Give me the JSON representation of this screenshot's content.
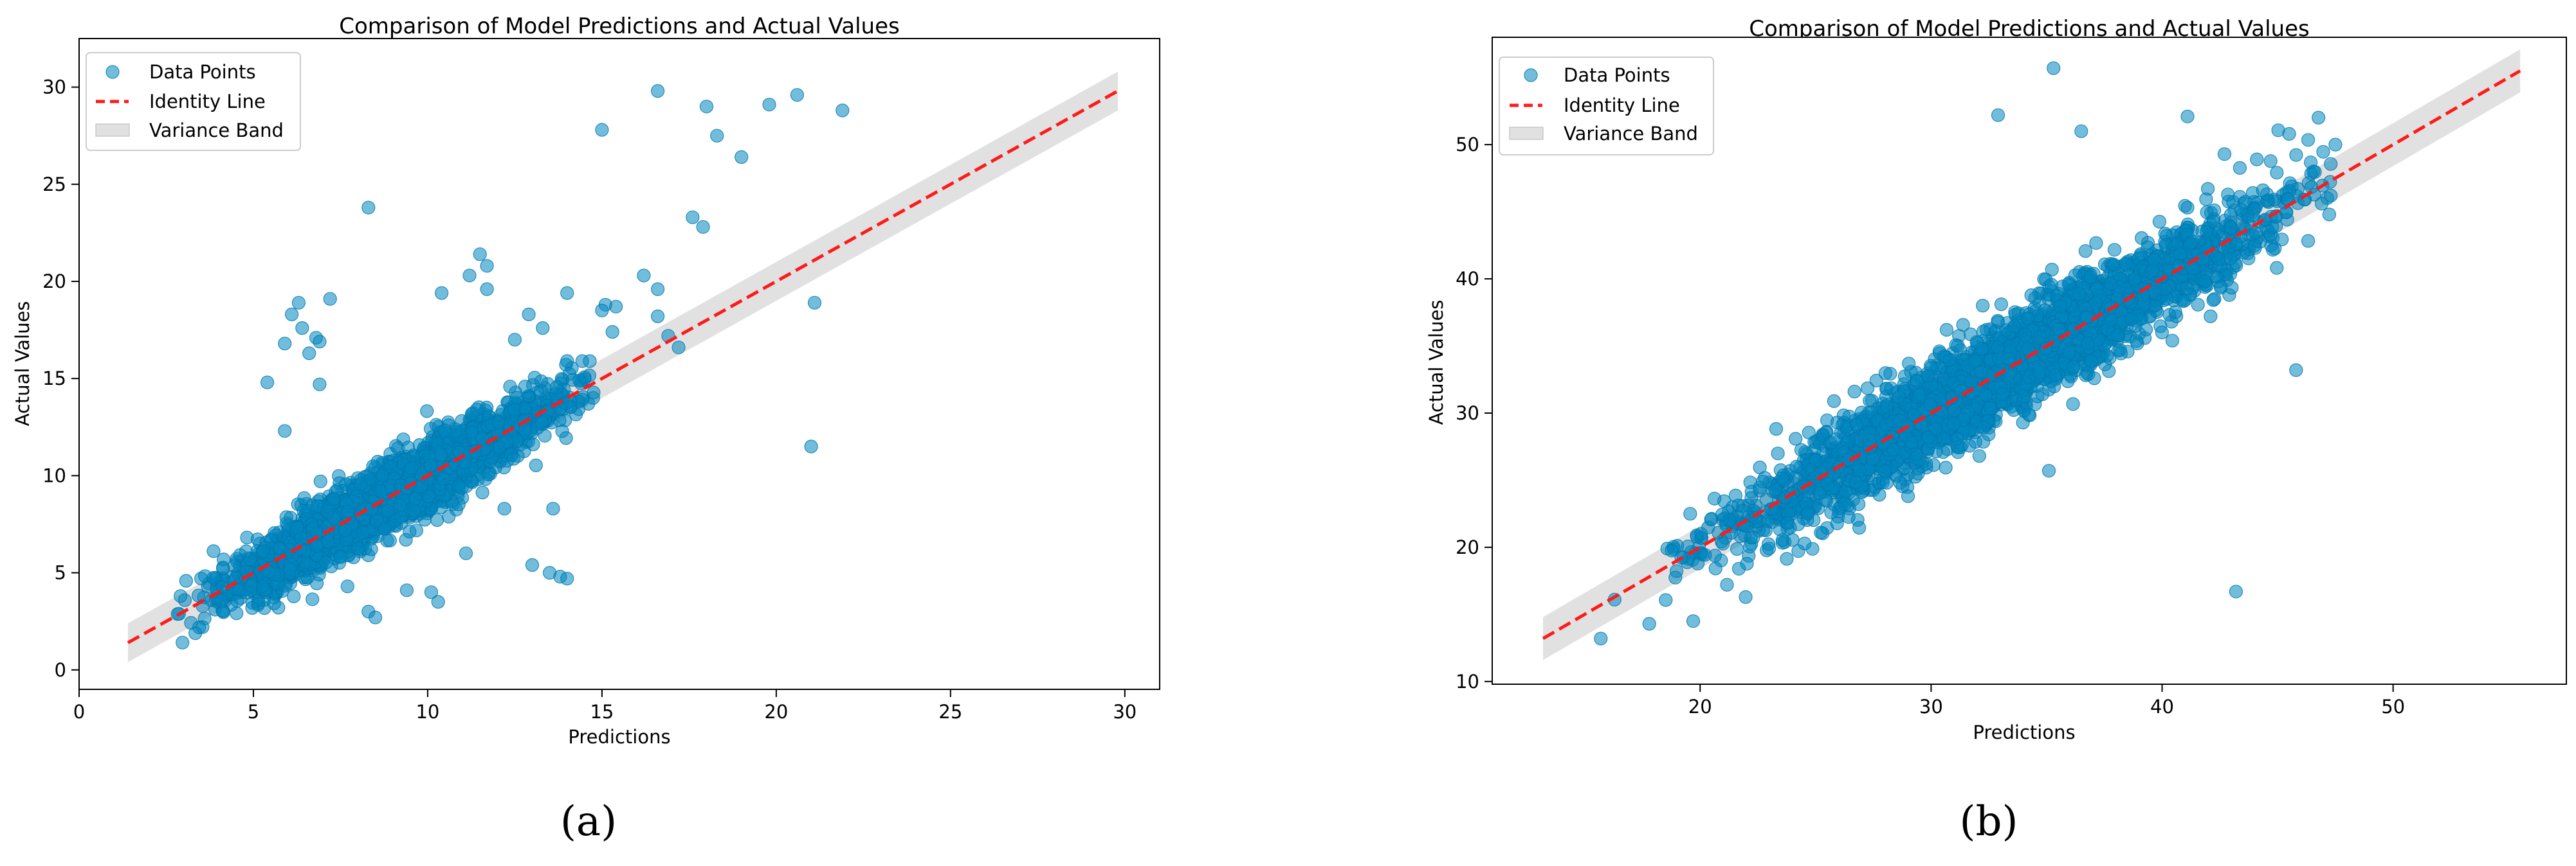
{
  "colors": {
    "points": "#0086c0",
    "identity": "#ff1a1a",
    "band": "#c9c9c9"
  },
  "chart_data": [
    {
      "type": "scatter",
      "panel_label": "(a)",
      "title": "Comparison of Model Predictions and Actual Values",
      "xlabel": "Predictions",
      "ylabel": "Actual Values",
      "xlim": [
        0,
        31
      ],
      "ylim": [
        -1,
        32.5
      ],
      "xticks": [
        0,
        5,
        10,
        15,
        20,
        25,
        30
      ],
      "yticks": [
        0,
        5,
        10,
        15,
        20,
        25,
        30
      ],
      "legend": {
        "placement": "top-left",
        "entries": [
          "Data Points",
          "Identity Line",
          "Variance Band"
        ]
      },
      "identity_line": {
        "from": 1.4,
        "to": 29.8
      },
      "variance_band_halfwidth": 1.0,
      "scatter_main": {
        "n": 2600,
        "x_center": 9.0,
        "x_spread": 2.4,
        "x_min": 2.8,
        "x_max": 14.8,
        "y_noise": 0.85,
        "seed": 7
      },
      "outliers": [
        [
          8.3,
          23.8
        ],
        [
          6.1,
          18.3
        ],
        [
          6.3,
          18.9
        ],
        [
          6.4,
          17.6
        ],
        [
          6.6,
          16.3
        ],
        [
          6.8,
          17.1
        ],
        [
          6.9,
          16.9
        ],
        [
          5.9,
          16.8
        ],
        [
          7.2,
          19.1
        ],
        [
          6.9,
          14.7
        ],
        [
          5.4,
          14.8
        ],
        [
          5.9,
          12.3
        ],
        [
          15.0,
          27.8
        ],
        [
          16.6,
          29.8
        ],
        [
          18.0,
          29.0
        ],
        [
          18.3,
          27.5
        ],
        [
          19.0,
          26.4
        ],
        [
          19.8,
          29.1
        ],
        [
          20.6,
          29.6
        ],
        [
          21.9,
          28.8
        ],
        [
          17.6,
          23.3
        ],
        [
          17.9,
          22.8
        ],
        [
          21.1,
          18.9
        ],
        [
          21.0,
          11.5
        ],
        [
          16.2,
          20.3
        ],
        [
          16.6,
          19.6
        ],
        [
          15.1,
          18.8
        ],
        [
          15.0,
          18.5
        ],
        [
          15.3,
          17.4
        ],
        [
          16.9,
          17.2
        ],
        [
          15.4,
          18.7
        ],
        [
          11.5,
          21.4
        ],
        [
          11.7,
          20.8
        ],
        [
          11.2,
          20.3
        ],
        [
          11.7,
          19.6
        ],
        [
          10.4,
          19.4
        ],
        [
          12.9,
          18.3
        ],
        [
          13.3,
          17.6
        ],
        [
          14.0,
          19.4
        ],
        [
          12.5,
          17.0
        ],
        [
          13.5,
          5.0
        ],
        [
          13.8,
          4.8
        ],
        [
          14.0,
          4.7
        ],
        [
          13.0,
          5.4
        ],
        [
          10.3,
          3.5
        ],
        [
          10.1,
          4.0
        ],
        [
          8.3,
          3.0
        ],
        [
          8.5,
          2.7
        ],
        [
          9.4,
          4.1
        ],
        [
          12.2,
          8.3
        ],
        [
          13.6,
          8.3
        ],
        [
          11.1,
          6.0
        ],
        [
          7.7,
          4.3
        ],
        [
          16.6,
          18.2
        ],
        [
          14.0,
          15.9
        ],
        [
          17.2,
          16.6
        ]
      ]
    },
    {
      "type": "scatter",
      "panel_label": "(b)",
      "title": "Comparison of Model Predictions and Actual Values",
      "xlabel": "Predictions",
      "ylabel": "Actual Values",
      "xlim": [
        11,
        57.5
      ],
      "ylim": [
        9.8,
        58
      ],
      "xticks": [
        20,
        30,
        40,
        50
      ],
      "yticks": [
        10,
        20,
        30,
        40,
        50
      ],
      "legend": {
        "placement": "top-left",
        "entries": [
          "Data Points",
          "Identity Line",
          "Variance Band"
        ]
      },
      "identity_line": {
        "from": 13.2,
        "to": 55.5
      },
      "variance_band_halfwidth": 1.6,
      "scatter_main": {
        "n": 3200,
        "x_center": 33.0,
        "x_spread": 5.8,
        "x_min": 18.5,
        "x_max": 47.5,
        "y_noise": 1.75,
        "seed": 11
      },
      "outliers": [
        [
          35.3,
          55.7
        ],
        [
          32.9,
          52.2
        ],
        [
          41.1,
          52.1
        ],
        [
          36.5,
          51.0
        ],
        [
          43.2,
          16.7
        ],
        [
          45.8,
          33.2
        ],
        [
          35.1,
          25.7
        ],
        [
          15.7,
          13.2
        ],
        [
          16.3,
          16.1
        ],
        [
          17.8,
          14.3
        ],
        [
          19.7,
          14.5
        ],
        [
          47.5,
          50.0
        ],
        [
          45.5,
          50.8
        ],
        [
          44.1,
          48.9
        ],
        [
          42.7,
          49.3
        ]
      ]
    }
  ]
}
